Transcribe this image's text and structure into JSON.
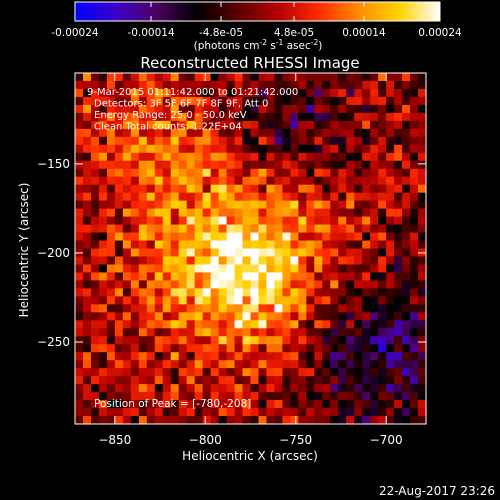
{
  "timestamp": "22-Aug-2017 23:26",
  "colorbar": {
    "ticks": [
      {
        "value": -0.00024,
        "label": "-0.00024"
      },
      {
        "value": -0.00014,
        "label": "-0.00014"
      },
      {
        "value": -4.8e-05,
        "label": "-4.8e-05"
      },
      {
        "value": 4.8e-05,
        "label": "4.8e-05"
      },
      {
        "value": 0.00014,
        "label": "0.00014"
      },
      {
        "value": 0.00024,
        "label": "0.00024"
      }
    ],
    "range": [
      -0.00024,
      0.00024
    ],
    "units_text": "(photons cm",
    "units_sup1": "-2",
    "units_mid": " s",
    "units_sup2": "-1",
    "units_mid2": " asec",
    "units_sup3": "-2",
    "units_end": ")",
    "palette": [
      "#0000ff",
      "#3d00c8",
      "#4b0063",
      "#000000",
      "#5a0000",
      "#b40000",
      "#ff2a00",
      "#ff8c00",
      "#ffd200",
      "#ffffff"
    ]
  },
  "chart_data": {
    "type": "heatmap",
    "title": "Reconstructed RHESSI Image",
    "xlabel": "Heliocentric X (arcsec)",
    "ylabel": "Heliocentric Y (arcsec)",
    "xlim": [
      -872,
      -678
    ],
    "ylim": [
      -296,
      -99
    ],
    "xticks": [
      {
        "value": -850,
        "label": "−850"
      },
      {
        "value": -800,
        "label": "−800"
      },
      {
        "value": -750,
        "label": "−750"
      },
      {
        "value": -700,
        "label": "−700"
      }
    ],
    "yticks": [
      {
        "value": -150,
        "label": "−150"
      },
      {
        "value": -200,
        "label": "−200"
      },
      {
        "value": -250,
        "label": "−250"
      }
    ],
    "annotations": [
      "9-Mar-2015 01:11:42.000 to 01:21:42.000",
      "Detectors: 3F 5F 6F 7F 8F 9F, Att 0",
      "Energy Range: 25.0 - 50.0 keV",
      "Clean     Total counts: 1.22E+04"
    ],
    "peak_label": "Position of Peak = [-780,-208]",
    "peak": {
      "x": -780,
      "y": -208
    },
    "grid": false
  }
}
